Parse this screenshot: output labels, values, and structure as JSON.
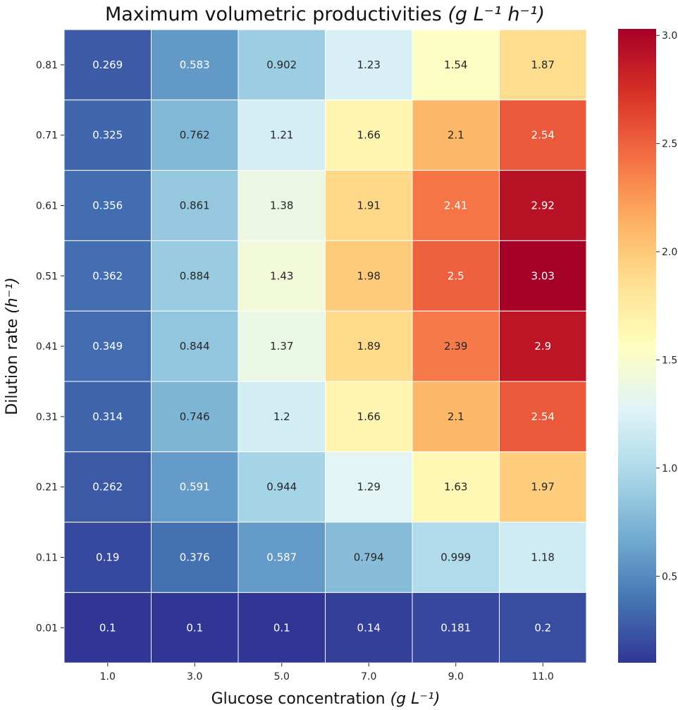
{
  "chart_data": {
    "type": "heatmap",
    "title": "Maximum volumetric productivities",
    "title_unit": "(g L⁻¹ h⁻¹)",
    "xlabel": "Glucose concentration",
    "xlabel_unit": "(g L⁻¹)",
    "ylabel": "Dilution rate",
    "ylabel_unit": "(h⁻¹)",
    "x_categories": [
      "1.0",
      "3.0",
      "5.0",
      "7.0",
      "9.0",
      "11.0"
    ],
    "y_categories": [
      "0.81",
      "0.71",
      "0.61",
      "0.51",
      "0.41",
      "0.31",
      "0.21",
      "0.11",
      "0.01"
    ],
    "values": [
      [
        0.269,
        0.583,
        0.902,
        1.23,
        1.54,
        1.87
      ],
      [
        0.325,
        0.762,
        1.21,
        1.66,
        2.1,
        2.54
      ],
      [
        0.356,
        0.861,
        1.38,
        1.91,
        2.41,
        2.92
      ],
      [
        0.362,
        0.884,
        1.43,
        1.98,
        2.5,
        3.03
      ],
      [
        0.349,
        0.844,
        1.37,
        1.89,
        2.39,
        2.9
      ],
      [
        0.314,
        0.746,
        1.2,
        1.66,
        2.1,
        2.54
      ],
      [
        0.262,
        0.591,
        0.944,
        1.29,
        1.63,
        1.97
      ],
      [
        0.19,
        0.376,
        0.587,
        0.794,
        0.999,
        1.18
      ],
      [
        0.1,
        0.1,
        0.1,
        0.14,
        0.181,
        0.2
      ]
    ],
    "value_labels": [
      [
        "0.269",
        "0.583",
        "0.902",
        "1.23",
        "1.54",
        "1.87"
      ],
      [
        "0.325",
        "0.762",
        "1.21",
        "1.66",
        "2.1",
        "2.54"
      ],
      [
        "0.356",
        "0.861",
        "1.38",
        "1.91",
        "2.41",
        "2.92"
      ],
      [
        "0.362",
        "0.884",
        "1.43",
        "1.98",
        "2.5",
        "3.03"
      ],
      [
        "0.349",
        "0.844",
        "1.37",
        "1.89",
        "2.39",
        "2.9"
      ],
      [
        "0.314",
        "0.746",
        "1.2",
        "1.66",
        "2.1",
        "2.54"
      ],
      [
        "0.262",
        "0.591",
        "0.944",
        "1.29",
        "1.63",
        "1.97"
      ],
      [
        "0.19",
        "0.376",
        "0.587",
        "0.794",
        "0.999",
        "1.18"
      ],
      [
        "0.1",
        "0.1",
        "0.1",
        "0.14",
        "0.181",
        "0.2"
      ]
    ],
    "colormap": "RdYlBu_r",
    "vmin": 0.1,
    "vmax": 3.03,
    "colorbar_ticks": [
      0.5,
      1.0,
      1.5,
      2.0,
      2.5,
      3.0
    ],
    "colorbar_tick_labels": [
      "0.5",
      "1.0",
      "1.5",
      "2.0",
      "2.5",
      "3.0"
    ],
    "legend_position": "right"
  }
}
